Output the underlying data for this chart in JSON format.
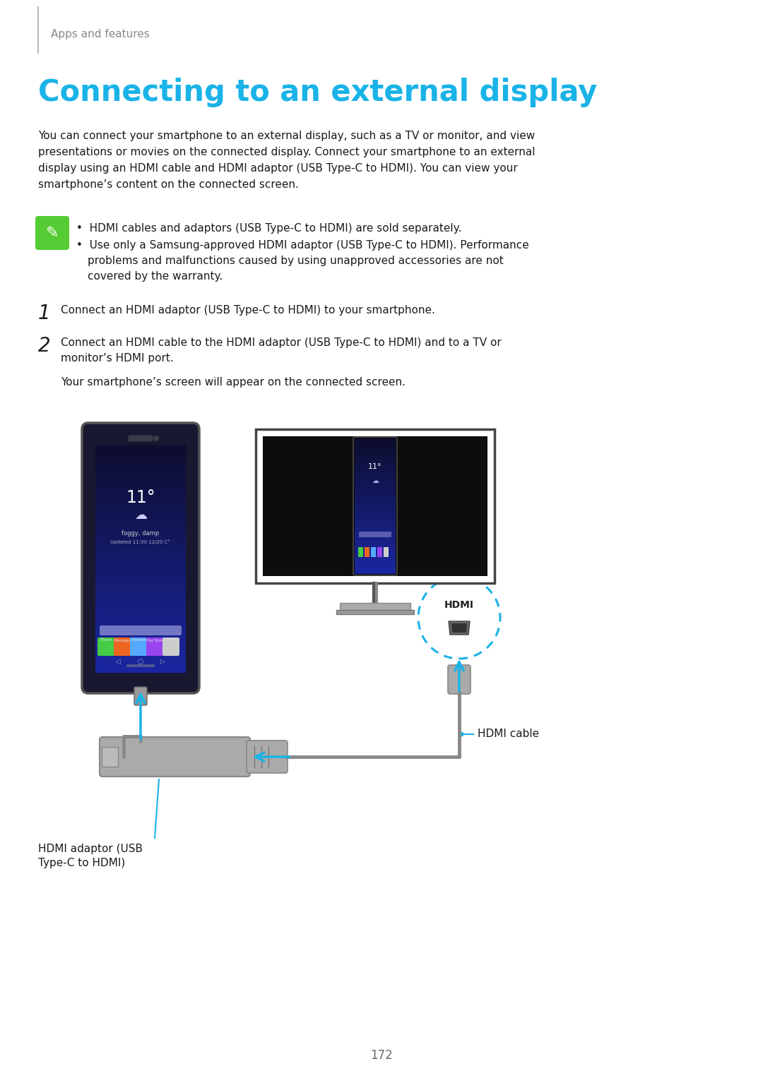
{
  "bg_color": "#ffffff",
  "header_text": "Apps and features",
  "header_text_color": "#888888",
  "title": "Connecting to an external display",
  "title_color": "#1ab3e8",
  "body_line1": "You can connect your smartphone to an external display, such as a TV or monitor, and view",
  "body_line2": "presentations or movies on the connected display. Connect your smartphone to an external",
  "body_line3": "display using an HDMI cable and HDMI adaptor (USB Type-C to HDMI). You can view your",
  "body_line4": "smartphone’s content on the connected screen.",
  "body_color": "#1a1a1a",
  "note_icon_color": "#55cc33",
  "note_bullet1": "HDMI cables and adaptors (USB Type-C to HDMI) are sold separately.",
  "note_bullet2a": "Use only a Samsung-approved HDMI adaptor (USB Type-C to HDMI). Performance",
  "note_bullet2b": "problems and malfunctions caused by using unapproved accessories are not",
  "note_bullet2c": "covered by the warranty.",
  "step1_text": "Connect an HDMI adaptor (USB Type-C to HDMI) to your smartphone.",
  "step2_line1": "Connect an HDMI cable to the HDMI adaptor (USB Type-C to HDMI) and to a TV or",
  "step2_line2": "monitor’s HDMI port.",
  "step2_sub": "Your smartphone’s screen will appear on the connected screen.",
  "label_hdmi_cable": "HDMI cable",
  "label_hdmi_adaptor_line1": "HDMI adaptor (USB",
  "label_hdmi_adaptor_line2": "Type-C to HDMI)",
  "page_num": "172",
  "arrow_color": "#1ab3e8",
  "cable_gray": "#888888",
  "phone_dark": "#181830",
  "phone_mid": "#1a1a50",
  "phone_edge": "#444444",
  "monitor_border": "#444444",
  "monitor_screen": "#0d0d0d",
  "adaptor_gray": "#aaaaaa",
  "adaptor_dark": "#888888",
  "hdmi_circle_color": "#1ab3e8",
  "text_dark": "#1a1a1a",
  "text_gray": "#666666"
}
